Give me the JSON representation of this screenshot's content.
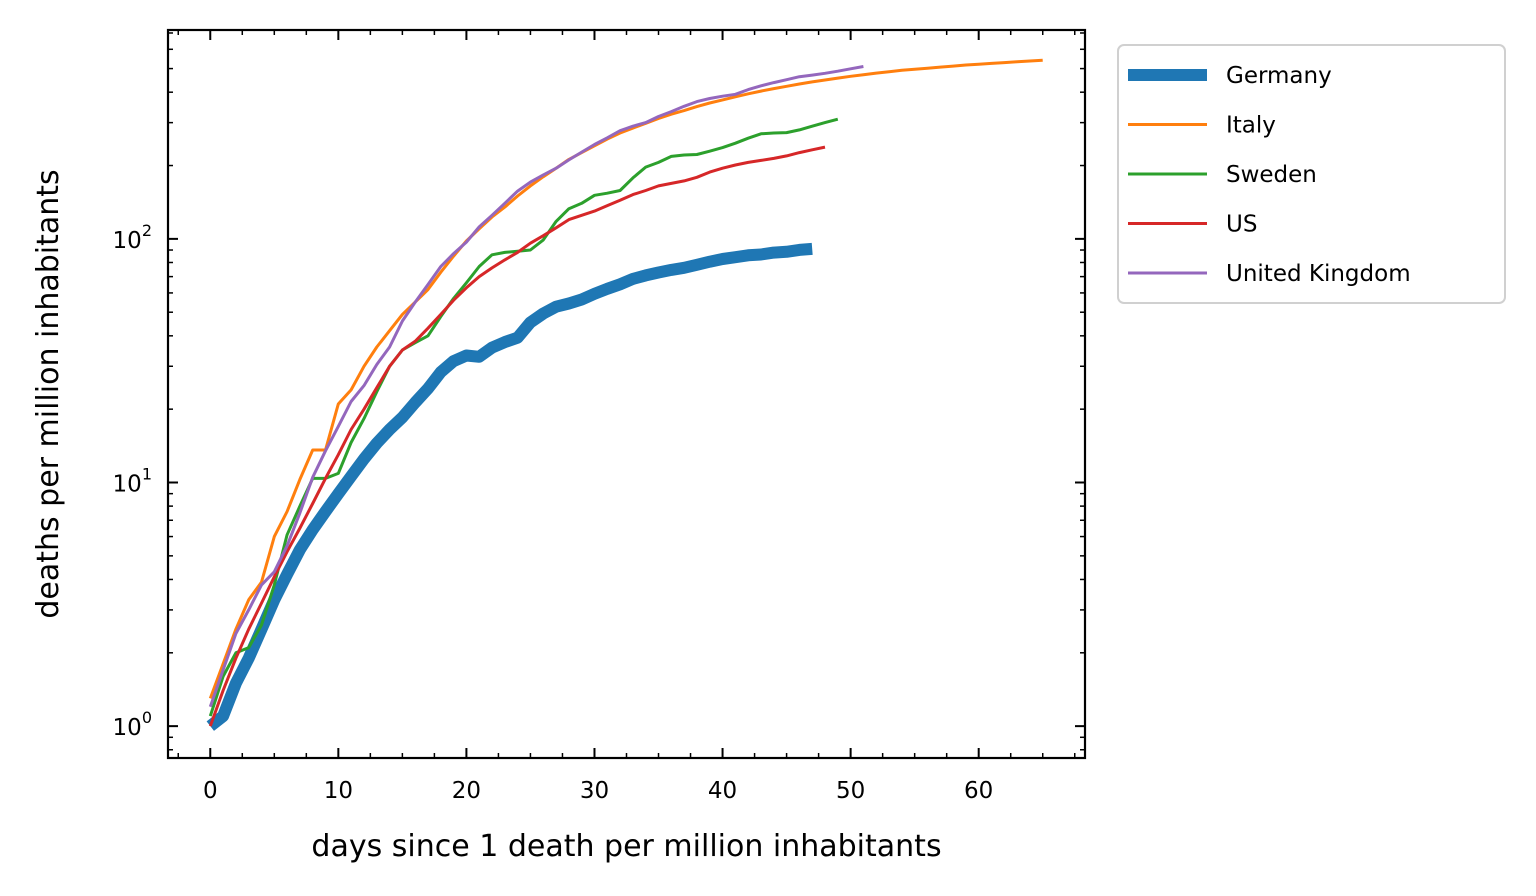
{
  "chart_data": {
    "type": "line",
    "xlabel": "days since 1 death per million inhabitants",
    "ylabel": "deaths per million inhabitants",
    "yscale": "log",
    "xlim": [
      -3.3,
      68.3
    ],
    "ylim": [
      0.74,
      720
    ],
    "x_ticks": [
      0,
      10,
      20,
      30,
      40,
      50,
      60
    ],
    "x_tick_labels": [
      "0",
      "10",
      "20",
      "30",
      "40",
      "50",
      "60"
    ],
    "y_ticks": [
      1,
      10,
      100
    ],
    "y_tick_labels": [
      {
        "base": "10",
        "exp": "0"
      },
      {
        "base": "10",
        "exp": "1"
      },
      {
        "base": "10",
        "exp": "2"
      }
    ],
    "grid": false,
    "legend_position": "outside upper right",
    "series": [
      {
        "name": "Germany",
        "color": "#1f77b4",
        "width": 12,
        "x": [
          0,
          1,
          2,
          3,
          4,
          5,
          6,
          7,
          8,
          9,
          10,
          11,
          12,
          13,
          14,
          15,
          16,
          17,
          18,
          19,
          20,
          21,
          22,
          23,
          24,
          25,
          26,
          27,
          28,
          29,
          30,
          31,
          32,
          33,
          34,
          35,
          36,
          37,
          38,
          39,
          40,
          41,
          42,
          43,
          44,
          45,
          46,
          47
        ],
        "y": [
          1.0,
          1.1,
          1.5,
          1.9,
          2.5,
          3.3,
          4.2,
          5.3,
          6.4,
          7.6,
          9.0,
          10.6,
          12.5,
          14.5,
          16.5,
          18.5,
          21.3,
          24.3,
          28.4,
          31.5,
          33.2,
          32.8,
          35.8,
          37.7,
          39.3,
          45.4,
          49.4,
          52.7,
          54.3,
          56.4,
          59.5,
          62.4,
          65.1,
          68.5,
          70.8,
          72.8,
          74.6,
          76.1,
          78.3,
          80.6,
          82.7,
          84.1,
          85.6,
          86.3,
          87.8,
          88.5,
          90.1,
          91.0
        ]
      },
      {
        "name": "Italy",
        "color": "#ff7f0e",
        "width": 3,
        "x": [
          0,
          1,
          2,
          3,
          4,
          5,
          6,
          7,
          8,
          9,
          10,
          11,
          12,
          13,
          14,
          15,
          16,
          17,
          18,
          19,
          20,
          21,
          22,
          23,
          24,
          25,
          26,
          27,
          28,
          29,
          30,
          31,
          32,
          33,
          34,
          35,
          36,
          37,
          38,
          39,
          40,
          41,
          42,
          43,
          44,
          45,
          46,
          47,
          48,
          49,
          50,
          51,
          52,
          53,
          54,
          55,
          56,
          57,
          58,
          59,
          60,
          61,
          62,
          63,
          64,
          65
        ],
        "y": [
          1.3,
          1.8,
          2.5,
          3.3,
          3.9,
          6.0,
          7.6,
          10.3,
          13.6,
          13.6,
          21.0,
          24.0,
          30.0,
          36.0,
          42.0,
          49.0,
          55.0,
          62.0,
          73.0,
          85.0,
          98.0,
          110.0,
          123.0,
          135.0,
          150.0,
          165.0,
          180.0,
          195.0,
          212.0,
          226.0,
          241.0,
          257.0,
          272.0,
          285.0,
          298.0,
          312.0,
          325.0,
          336.0,
          349.0,
          361.0,
          372.0,
          383.0,
          394.0,
          404.0,
          414.0,
          423.0,
          432.0,
          441.0,
          449.0,
          457.0,
          465.0,
          472.0,
          479.0,
          485.0,
          492.0,
          497.0,
          502.0,
          507.0,
          512.0,
          517.0,
          521.0,
          525.0,
          529.0,
          533.0,
          537.0,
          541.0
        ]
      },
      {
        "name": "Sweden",
        "color": "#2ca02c",
        "width": 3,
        "x": [
          0,
          1,
          2,
          3,
          4,
          5,
          6,
          7,
          8,
          9,
          10,
          11,
          12,
          13,
          14,
          15,
          16,
          17,
          18,
          19,
          20,
          21,
          22,
          23,
          24,
          25,
          26,
          27,
          28,
          29,
          30,
          31,
          32,
          33,
          34,
          35,
          36,
          37,
          38,
          39,
          40,
          41,
          42,
          43,
          44,
          45,
          46,
          47,
          48,
          49
        ],
        "y": [
          1.1,
          1.6,
          2.0,
          2.1,
          2.6,
          3.8,
          6.1,
          8.0,
          10.4,
          10.4,
          10.9,
          14.6,
          18.3,
          23.6,
          30.0,
          35.0,
          37.5,
          40.0,
          48.0,
          57.0,
          66.0,
          77.0,
          86.0,
          88.0,
          89.0,
          90.0,
          99.0,
          118.0,
          133.0,
          140.0,
          151.0,
          154.0,
          158.0,
          178.0,
          197.0,
          206.0,
          218.0,
          221.0,
          222.0,
          229.0,
          237.0,
          247.0,
          259.0,
          270.0,
          272.0,
          273.0,
          280.0,
          290.0,
          300.0,
          310.0
        ]
      },
      {
        "name": "US",
        "color": "#d62728",
        "width": 3,
        "x": [
          0,
          1,
          2,
          3,
          4,
          5,
          6,
          7,
          8,
          9,
          10,
          11,
          12,
          13,
          14,
          15,
          16,
          17,
          18,
          19,
          20,
          21,
          22,
          23,
          24,
          25,
          26,
          27,
          28,
          29,
          30,
          31,
          32,
          33,
          34,
          35,
          36,
          37,
          38,
          39,
          40,
          41,
          42,
          43,
          44,
          45,
          46,
          47,
          48
        ],
        "y": [
          1.0,
          1.4,
          1.9,
          2.5,
          3.2,
          4.1,
          5.2,
          6.5,
          8.2,
          10.4,
          13.0,
          16.5,
          20.0,
          24.5,
          30.0,
          35.0,
          38.0,
          43.0,
          49.0,
          56.0,
          63.0,
          70.0,
          76.0,
          82.0,
          88.0,
          96.0,
          103.0,
          111.0,
          120.0,
          125.0,
          130.0,
          137.0,
          144.0,
          152.0,
          158.0,
          165.0,
          169.0,
          173.0,
          179.0,
          188.0,
          195.0,
          201.0,
          206.0,
          210.0,
          214.0,
          219.0,
          226.0,
          232.0,
          238.0
        ]
      },
      {
        "name": "United Kingdom",
        "color": "#9467bd",
        "width": 3,
        "x": [
          0,
          1,
          2,
          3,
          4,
          5,
          6,
          7,
          8,
          9,
          10,
          11,
          12,
          13,
          14,
          15,
          16,
          17,
          18,
          19,
          20,
          21,
          22,
          23,
          24,
          25,
          26,
          27,
          28,
          29,
          30,
          31,
          32,
          33,
          34,
          35,
          36,
          37,
          38,
          39,
          40,
          41,
          42,
          43,
          44,
          45,
          46,
          47,
          48,
          49,
          50,
          51
        ],
        "y": [
          1.2,
          1.7,
          2.4,
          3.0,
          3.8,
          4.3,
          5.5,
          7.5,
          10.5,
          13.5,
          17.0,
          21.5,
          25.0,
          30.5,
          36.0,
          46.0,
          55.0,
          65.0,
          77.0,
          87.0,
          97.0,
          112.0,
          125.0,
          140.0,
          157.0,
          171.0,
          183.0,
          195.0,
          211.0,
          227.0,
          244.0,
          260.0,
          278.0,
          290.0,
          300.0,
          318.0,
          333.0,
          350.0,
          366.0,
          377.0,
          385.0,
          392.0,
          410.0,
          425.0,
          438.0,
          450.0,
          463.0,
          470.0,
          478.0,
          488.0,
          499.0,
          510.0
        ]
      }
    ]
  }
}
